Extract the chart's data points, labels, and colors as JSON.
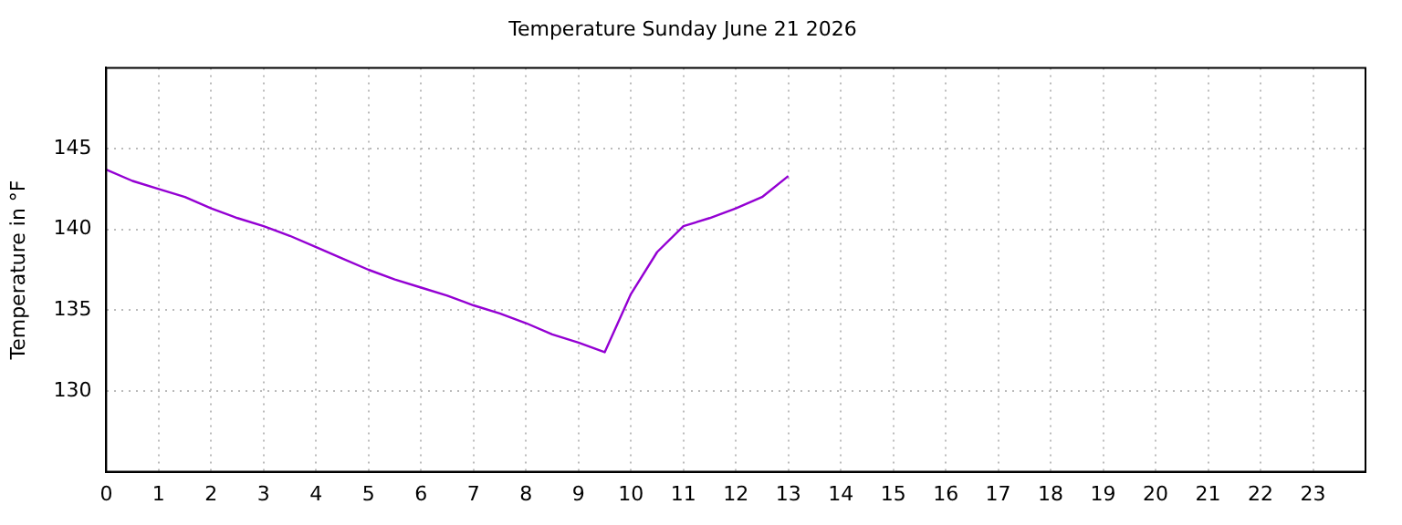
{
  "chart_data": {
    "type": "line",
    "title": "Temperature Sunday June 21 2026",
    "ylabel": "Temperature in °F",
    "x": [
      0,
      0.5,
      1,
      1.5,
      2,
      2.5,
      3,
      3.5,
      4,
      4.5,
      5,
      5.5,
      6,
      6.5,
      7,
      7.5,
      8,
      8.5,
      9,
      9.5,
      10,
      10.5,
      11,
      11.5,
      12,
      12.5,
      13
    ],
    "series": [
      {
        "color": "#9400d3",
        "values": [
          143.7,
          143.0,
          142.5,
          142.0,
          141.3,
          140.7,
          140.2,
          139.6,
          138.9,
          138.2,
          137.5,
          136.9,
          136.4,
          135.9,
          135.3,
          134.8,
          134.2,
          133.5,
          133.0,
          132.4,
          136.0,
          138.6,
          140.2,
          140.7,
          141.3,
          142.0,
          143.3
        ]
      }
    ],
    "xlim": [
      0,
      24
    ],
    "xticks": [
      0,
      1,
      2,
      3,
      4,
      5,
      6,
      7,
      8,
      9,
      10,
      11,
      12,
      13,
      14,
      15,
      16,
      17,
      18,
      19,
      20,
      21,
      22,
      23
    ],
    "ylim": [
      125,
      150
    ],
    "yticks": [
      130,
      135,
      140,
      145
    ],
    "grid": true,
    "legend": false,
    "marker": "none",
    "line_style": "solid"
  }
}
